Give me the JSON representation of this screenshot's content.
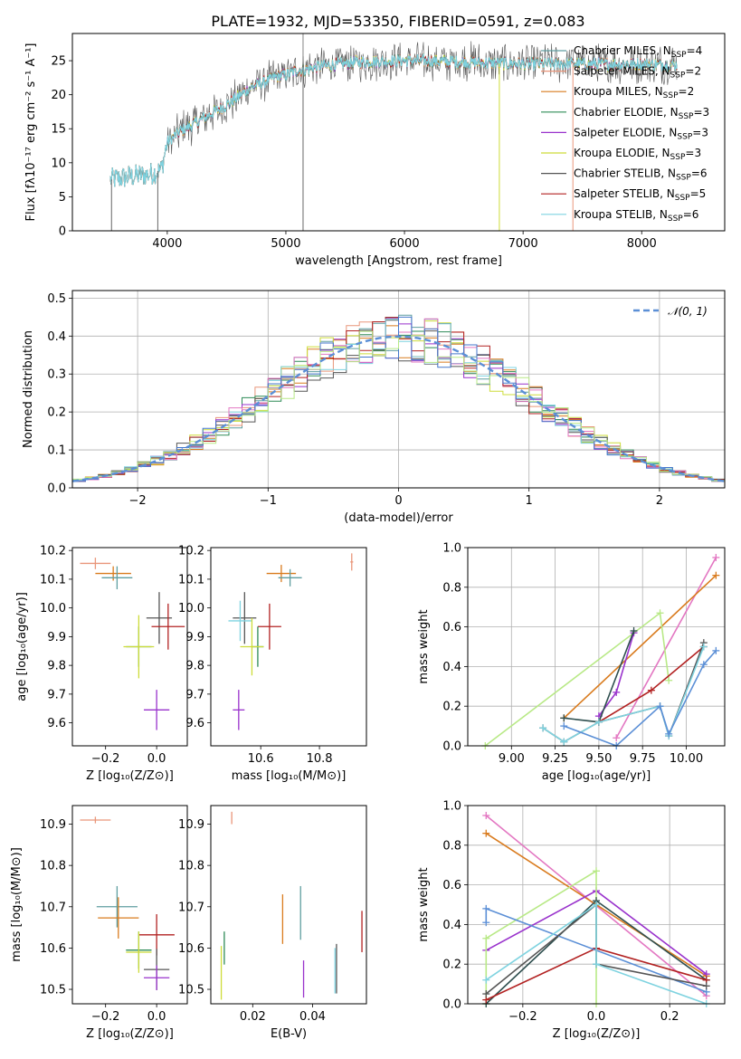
{
  "title": "PLATE=1932, MJD=53350, FIBERID=0591, z=0.083",
  "colors": {
    "Chabrier MILES": "#5f9ea0",
    "Salpeter MILES": "#e9967a",
    "Kroupa MILES": "#d97b1e",
    "Chabrier ELODIE": "#2e8b57",
    "Salpeter ELODIE": "#9932cc",
    "Kroupa ELODIE": "#cddc39",
    "Chabrier STELIB": "#555555",
    "Salpeter STELIB": "#b22222",
    "Kroupa STELIB": "#7fd3e0",
    "normal": "#5b8fd6",
    "grid": "#b0b0b0"
  },
  "chart_data": [
    {
      "id": "spectrum",
      "type": "line",
      "title": "PLATE=1932, MJD=53350, FIBERID=0591, z=0.083",
      "xlabel": "wavelength [Angstrom, rest frame]",
      "ylabel": "Flux [fλ10⁻¹⁷ erg cm⁻² s⁻¹ A⁻¹]",
      "xlim": [
        3200,
        8700
      ],
      "ylim": [
        0,
        29
      ],
      "xticks": [
        4000,
        5000,
        6000,
        7000,
        8000
      ],
      "yticks": [
        0,
        5,
        10,
        15,
        20,
        25
      ],
      "grid": false,
      "legend": "right",
      "legend_entries": [
        {
          "model": "Chabrier MILES",
          "label": "Chabrier MILES, N",
          "sub": "SSP",
          "n": "=4"
        },
        {
          "model": "Salpeter MILES",
          "label": "Salpeter MILES, N",
          "sub": "SSP",
          "n": "=2"
        },
        {
          "model": "Kroupa MILES",
          "label": "Kroupa MILES, N",
          "sub": "SSP",
          "n": "=2"
        },
        {
          "model": "Chabrier ELODIE",
          "label": "Chabrier ELODIE, N",
          "sub": "SSP",
          "n": "=3"
        },
        {
          "model": "Salpeter ELODIE",
          "label": "Salpeter ELODIE, N",
          "sub": "SSP",
          "n": "=3"
        },
        {
          "model": "Kroupa ELODIE",
          "label": "Kroupa ELODIE, N",
          "sub": "SSP",
          "n": "=3"
        },
        {
          "model": "Chabrier STELIB",
          "label": "Chabrier STELIB, N",
          "sub": "SSP",
          "n": "=6"
        },
        {
          "model": "Salpeter STELIB",
          "label": "Salpeter STELIB, N",
          "sub": "SSP",
          "n": "=5"
        },
        {
          "model": "Kroupa STELIB",
          "label": "Kroupa STELIB, N",
          "sub": "SSP",
          "n": "=6"
        }
      ],
      "continuum": {
        "x": [
          3520,
          3700,
          3850,
          3950,
          4000,
          4100,
          4300,
          4500,
          4700,
          4900,
          5100,
          5300,
          5600,
          5900,
          6200,
          6500,
          6800,
          7100,
          7400,
          7700,
          8000,
          8300
        ],
        "y": [
          7.5,
          8.0,
          8.3,
          9.0,
          13.0,
          14.5,
          16.5,
          18.5,
          21.0,
          22.5,
          23.5,
          24.2,
          24.8,
          25.0,
          25.0,
          24.8,
          24.6,
          24.5,
          24.6,
          24.5,
          24.5,
          24.4
        ]
      },
      "dips": [
        {
          "x": 3530,
          "y": 0
        },
        {
          "x": 3920,
          "y": 0
        },
        {
          "x": 5145,
          "y": 0
        },
        {
          "x": 6800,
          "y": 0
        },
        {
          "x": 7420,
          "y": 0
        }
      ],
      "spikes": [
        {
          "x": 5145,
          "y": 29
        }
      ]
    },
    {
      "id": "residuals",
      "type": "histogram",
      "xlabel": "(data-model)/error",
      "ylabel": "Normed distribution",
      "xlim": [
        -2.5,
        2.5
      ],
      "ylim": [
        0,
        0.52
      ],
      "xticks": [
        -2,
        -1,
        0,
        1,
        2
      ],
      "yticks": [
        0.0,
        0.1,
        0.2,
        0.3,
        0.4,
        0.5
      ],
      "grid": true,
      "legend": "top-right",
      "legend_label": "𝒩(0, 1)",
      "bin_width": 0.1,
      "bin_start": -2.5,
      "bins": 50,
      "normal_curve": {
        "mu": 0,
        "sigma": 1
      }
    },
    {
      "id": "age_vs_Z",
      "type": "errorbar",
      "xlabel": "Z [log₁₀(Z/Z⊙)]",
      "ylabel": "age  [log₁₀(age/yr)]",
      "xlim": [
        -0.33,
        0.12
      ],
      "ylim": [
        9.52,
        10.21
      ],
      "xticks": [
        -0.2,
        0.0
      ],
      "yticks": [
        9.6,
        9.7,
        9.8,
        9.9,
        10.0,
        10.1,
        10.2
      ],
      "grid": false,
      "points": [
        {
          "model": "Salpeter MILES",
          "x": -0.24,
          "y": 10.155,
          "xerr": 0.06,
          "yerr": 0.02
        },
        {
          "model": "Kroupa MILES",
          "x": -0.17,
          "y": 10.12,
          "xerr": 0.07,
          "yerr": 0.025
        },
        {
          "model": "Chabrier MILES",
          "x": -0.155,
          "y": 10.105,
          "xerr": 0.06,
          "yerr": 0.04
        },
        {
          "model": "Chabrier STELIB",
          "x": 0.01,
          "y": 9.965,
          "xerr": 0.05,
          "yerr": 0.09
        },
        {
          "model": "Salpeter STELIB",
          "x": 0.045,
          "y": 9.935,
          "xerr": 0.065,
          "yerr": 0.08
        },
        {
          "model": "Chabrier ELODIE",
          "x": -0.07,
          "y": 9.865,
          "xerr": 0.05,
          "yerr": 0.07
        },
        {
          "model": "Kroupa ELODIE",
          "x": -0.07,
          "y": 9.865,
          "xerr": 0.06,
          "yerr": 0.11
        },
        {
          "model": "Salpeter ELODIE",
          "x": 0.0,
          "y": 9.645,
          "xerr": 0.05,
          "yerr": 0.07
        }
      ]
    },
    {
      "id": "age_vs_mass",
      "type": "errorbar",
      "xlabel": "mass [log₁₀(M/M⊙)]",
      "ylabel": "",
      "xlim": [
        10.43,
        10.96
      ],
      "ylim": [
        9.52,
        10.21
      ],
      "xticks": [
        10.6,
        10.8
      ],
      "yticks": [
        9.6,
        9.7,
        9.8,
        9.9,
        10.0,
        10.1,
        10.2
      ],
      "grid": false,
      "points": [
        {
          "model": "Salpeter MILES",
          "x": 10.91,
          "y": 10.16,
          "xerr": 0.005,
          "yerr": 0.03
        },
        {
          "model": "Kroupa MILES",
          "x": 10.67,
          "y": 10.12,
          "xerr": 0.05,
          "yerr": 0.03
        },
        {
          "model": "Chabrier MILES",
          "x": 10.7,
          "y": 10.105,
          "xerr": 0.04,
          "yerr": 0.03
        },
        {
          "model": "Chabrier STELIB",
          "x": 10.545,
          "y": 9.965,
          "xerr": 0.04,
          "yerr": 0.09
        },
        {
          "model": "Kroupa STELIB",
          "x": 10.53,
          "y": 9.955,
          "xerr": 0.04,
          "yerr": 0.07
        },
        {
          "model": "Salpeter STELIB",
          "x": 10.63,
          "y": 9.935,
          "xerr": 0.04,
          "yerr": 0.08
        },
        {
          "model": "Chabrier ELODIE",
          "x": 10.59,
          "y": 9.865,
          "xerr": 0.02,
          "yerr": 0.07
        },
        {
          "model": "Kroupa ELODIE",
          "x": 10.57,
          "y": 9.865,
          "xerr": 0.04,
          "yerr": 0.1
        },
        {
          "model": "Salpeter ELODIE",
          "x": 10.525,
          "y": 9.645,
          "xerr": 0.02,
          "yerr": 0.07
        }
      ]
    },
    {
      "id": "massweight_vs_age",
      "type": "line",
      "xlabel": "age  [log₁₀(age/yr)]",
      "ylabel": "mass weight",
      "xlim": [
        8.75,
        10.22
      ],
      "ylim": [
        0,
        1.0
      ],
      "xticks": [
        9.0,
        9.25,
        9.5,
        9.75,
        10.0
      ],
      "xticklabels": [
        "9.00",
        "9.25",
        "9.50",
        "9.75",
        "10.00"
      ],
      "yticks": [
        0.0,
        0.2,
        0.4,
        0.6,
        0.8,
        1.0
      ],
      "grid": true,
      "series": [
        {
          "model": "Salpeter MILES",
          "x": [
            9.6,
            10.17
          ],
          "y": [
            0.04,
            0.95
          ]
        },
        {
          "model": "Kroupa MILES",
          "x": [
            9.3,
            10.17
          ],
          "y": [
            0.14,
            0.86
          ]
        },
        {
          "model": "Kroupa ELODIE",
          "x": [
            8.85,
            9.85,
            9.9
          ],
          "y": [
            0.0,
            0.67,
            0.33
          ]
        },
        {
          "model": "Salpeter ELODIE",
          "x": [
            9.5,
            9.6,
            9.7
          ],
          "y": [
            0.15,
            0.27,
            0.57
          ]
        },
        {
          "model": "Chabrier ELODIE",
          "x": [
            9.3,
            9.5,
            9.7
          ],
          "y": [
            0.14,
            0.12,
            0.58
          ]
        },
        {
          "model": "Salpeter STELIB",
          "x": [
            9.5,
            9.8,
            10.1
          ],
          "y": [
            0.12,
            0.28,
            0.5
          ]
        },
        {
          "model": "Chabrier STELIB",
          "x": [
            9.18,
            9.3,
            9.5,
            9.85,
            9.9,
            10.1
          ],
          "y": [
            0.09,
            0.02,
            0.12,
            0.2,
            0.05,
            0.52
          ]
        },
        {
          "model": "Kroupa STELIB",
          "x": [
            9.18,
            9.3,
            9.5,
            9.85,
            9.9,
            10.1
          ],
          "y": [
            0.09,
            0.02,
            0.12,
            0.2,
            0.05,
            0.5
          ]
        },
        {
          "model": "Chabrier MILES",
          "x": [
            9.3,
            9.6,
            9.85,
            9.9,
            10.1,
            10.17
          ],
          "y": [
            0.1,
            0.0,
            0.2,
            0.06,
            0.41,
            0.48
          ]
        }
      ]
    },
    {
      "id": "mass_vs_Z",
      "type": "errorbar",
      "xlabel": "Z [log₁₀(Z/Z⊙)]",
      "ylabel": "mass [log₁₀(M/M⊙)]",
      "xlim": [
        -0.33,
        0.12
      ],
      "ylim": [
        10.465,
        10.945
      ],
      "xticks": [
        -0.2,
        0.0
      ],
      "yticks": [
        10.5,
        10.6,
        10.7,
        10.8,
        10.9
      ],
      "grid": false,
      "points": [
        {
          "model": "Salpeter MILES",
          "x": -0.24,
          "y": 10.91,
          "xerr": 0.06,
          "yerr": 0.008
        },
        {
          "model": "Chabrier MILES",
          "x": -0.155,
          "y": 10.7,
          "xerr": 0.08,
          "yerr": 0.05
        },
        {
          "model": "Kroupa MILES",
          "x": -0.15,
          "y": 10.673,
          "xerr": 0.08,
          "yerr": 0.05
        },
        {
          "model": "Salpeter STELIB",
          "x": 0.0,
          "y": 10.632,
          "xerr": 0.07,
          "yerr": 0.05
        },
        {
          "model": "Chabrier ELODIE",
          "x": -0.07,
          "y": 10.595,
          "xerr": 0.05,
          "yerr": 0.045
        },
        {
          "model": "Kroupa ELODIE",
          "x": -0.07,
          "y": 10.59,
          "xerr": 0.05,
          "yerr": 0.05
        },
        {
          "model": "Chabrier STELIB",
          "x": 0.0,
          "y": 10.548,
          "xerr": 0.05,
          "yerr": 0.05
        },
        {
          "model": "Salpeter ELODIE",
          "x": 0.0,
          "y": 10.528,
          "xerr": 0.05,
          "yerr": 0.03
        }
      ]
    },
    {
      "id": "mass_vs_EBV",
      "type": "errorbar",
      "xlabel": "E(B-V)",
      "ylabel": "",
      "xlim": [
        0.006,
        0.058
      ],
      "ylim": [
        10.465,
        10.945
      ],
      "xticks": [
        0.02,
        0.04
      ],
      "xticklabels": [
        "0.02",
        "0.04"
      ],
      "yticks": [
        10.5,
        10.6,
        10.7,
        10.8,
        10.9
      ],
      "grid": false,
      "points": [
        {
          "model": "Salpeter MILES",
          "x": 0.013,
          "y": 10.915,
          "xerr": 0.0,
          "yerr": 0.015
        },
        {
          "model": "Kroupa MILES",
          "x": 0.03,
          "y": 10.67,
          "xerr": 0.0,
          "yerr": 0.06
        },
        {
          "model": "Chabrier MILES",
          "x": 0.036,
          "y": 10.685,
          "xerr": 0.0,
          "yerr": 0.065
        },
        {
          "model": "Chabrier ELODIE",
          "x": 0.0105,
          "y": 10.6,
          "xerr": 0.0,
          "yerr": 0.04
        },
        {
          "model": "Kroupa ELODIE",
          "x": 0.0095,
          "y": 10.54,
          "xerr": 0.0,
          "yerr": 0.065
        },
        {
          "model": "Salpeter ELODIE",
          "x": 0.037,
          "y": 10.525,
          "xerr": 0.0,
          "yerr": 0.045
        },
        {
          "model": "Chabrier STELIB",
          "x": 0.048,
          "y": 10.55,
          "xerr": 0.0,
          "yerr": 0.06
        },
        {
          "model": "Kroupa STELIB",
          "x": 0.0475,
          "y": 10.545,
          "xerr": 0.0,
          "yerr": 0.055
        },
        {
          "model": "Salpeter STELIB",
          "x": 0.0565,
          "y": 10.64,
          "xerr": 0.0,
          "yerr": 0.05
        }
      ]
    },
    {
      "id": "massweight_vs_Z",
      "type": "line",
      "xlabel": "Z [log₁₀(Z/Z⊙)]",
      "ylabel": "mass weight",
      "xlim": [
        -0.35,
        0.35
      ],
      "ylim": [
        0,
        1.0
      ],
      "xticks": [
        -0.2,
        0.0,
        0.2
      ],
      "yticks": [
        0.0,
        0.2,
        0.4,
        0.6,
        0.8,
        1.0
      ],
      "grid": true,
      "series": [
        {
          "model": "Salpeter MILES",
          "x": [
            -0.3,
            0.3
          ],
          "y": [
            0.95,
            0.04
          ]
        },
        {
          "model": "Kroupa MILES",
          "x": [
            -0.3,
            0.3
          ],
          "y": [
            0.86,
            0.14
          ]
        },
        {
          "model": "Salpeter ELODIE",
          "x": [
            -0.3,
            0.0,
            0.3
          ],
          "y": [
            0.27,
            0.57,
            0.15
          ]
        },
        {
          "model": "Kroupa ELODIE",
          "x": [
            -0.3,
            -0.3,
            0.0,
            0.0
          ],
          "y": [
            0.0,
            0.33,
            0.67,
            0.0
          ]
        },
        {
          "model": "Chabrier ELODIE",
          "x": [
            -0.3,
            0.0,
            0.3
          ],
          "y": [
            0.0,
            0.52,
            0.12
          ]
        },
        {
          "model": "Salpeter STELIB",
          "x": [
            -0.3,
            0.0,
            0.3
          ],
          "y": [
            0.02,
            0.28,
            0.12
          ]
        },
        {
          "model": "Chabrier MILES",
          "x": [
            -0.3,
            -0.3,
            0.3
          ],
          "y": [
            0.41,
            0.48,
            0.06
          ]
        },
        {
          "model": "Chabrier STELIB",
          "x": [
            -0.3,
            0.0,
            0.0,
            0.3
          ],
          "y": [
            0.05,
            0.5,
            0.2,
            0.09
          ]
        },
        {
          "model": "Kroupa STELIB",
          "x": [
            -0.3,
            0.0,
            0.0,
            0.3
          ],
          "y": [
            0.12,
            0.5,
            0.2,
            0.0
          ]
        }
      ]
    }
  ]
}
